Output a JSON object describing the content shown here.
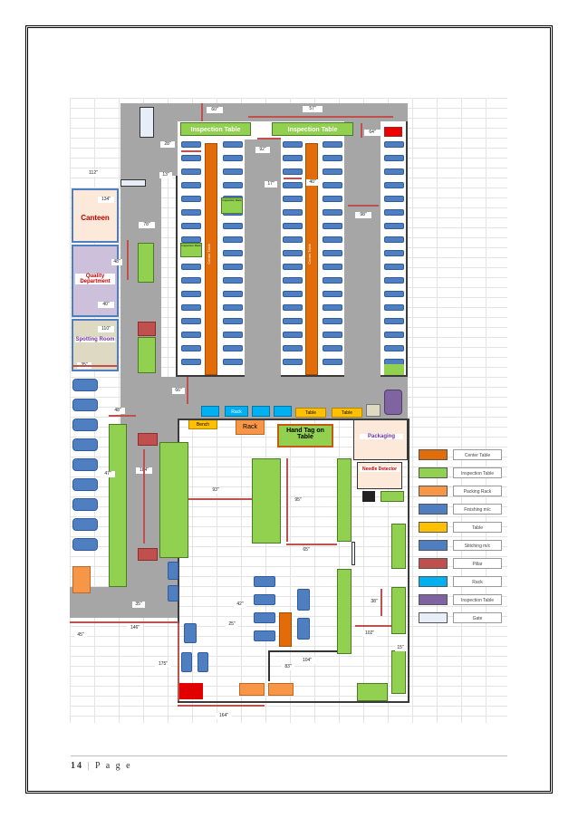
{
  "labels": {
    "inspection_table_1": "Inspection Table",
    "inspection_table_2": "Inspection Table",
    "canteen": "Canteen",
    "quality_dept": "Quality Department",
    "spotting_room": "Spotting Room",
    "hand_tag": "Hand Tag on Table",
    "packaging": "Packaging",
    "needle_detector": "Needle Detector",
    "rack": "Rack",
    "rack_small": "Rack",
    "table_1": "Table",
    "table_2": "Table",
    "bench": "Bench",
    "center_table_1": "Center Table",
    "center_table_2": "Center Table",
    "inspection_rack": "Inspection Rack"
  },
  "dims": {
    "d60": "60\"",
    "d57": "57\"",
    "d64": "64\"",
    "d28": "28\"",
    "d92": "92\"",
    "d112": "112\"",
    "d134": "134\"",
    "d13": "13\"",
    "d40": "40\"",
    "d78": "78\"",
    "d17": "17\"",
    "d98": "98\"",
    "d110": "110\"",
    "d48": "48\"",
    "d104": "104\"",
    "d35": "35\"",
    "d66": "66\"",
    "d184": "184\"",
    "d47": "47\"",
    "d93": "93\"",
    "d95": "95\"",
    "d65": "65\"",
    "d42": "42\"",
    "d15": "15\"",
    "d175": "175\"",
    "d25": "25\"",
    "d45": "45\"",
    "d102": "102\"",
    "d38": "38\"",
    "d83": "83\"",
    "d146": "146\"",
    "d164": "164\""
  },
  "legend": [
    {
      "label": "Center Table",
      "color": "#e36c0a"
    },
    {
      "label": "Inspection Table",
      "color": "#92d050"
    },
    {
      "label": "Packing Rack",
      "color": "#f79646"
    },
    {
      "label": "Finishing m/c",
      "color": "#4f7fc0"
    },
    {
      "label": "Table",
      "color": "#ffc000"
    },
    {
      "label": "Stitching m/c",
      "color": "#4f7fc0"
    },
    {
      "label": "Pillar",
      "color": "#c0504d"
    },
    {
      "label": "Rack",
      "color": "#00b0f0"
    },
    {
      "label": "Inspection Table",
      "color": "#8064a2"
    },
    {
      "label": "Gate",
      "color": "#e8eef7"
    }
  ],
  "footer": {
    "page_number": "14",
    "page_word": "P a g e"
  }
}
